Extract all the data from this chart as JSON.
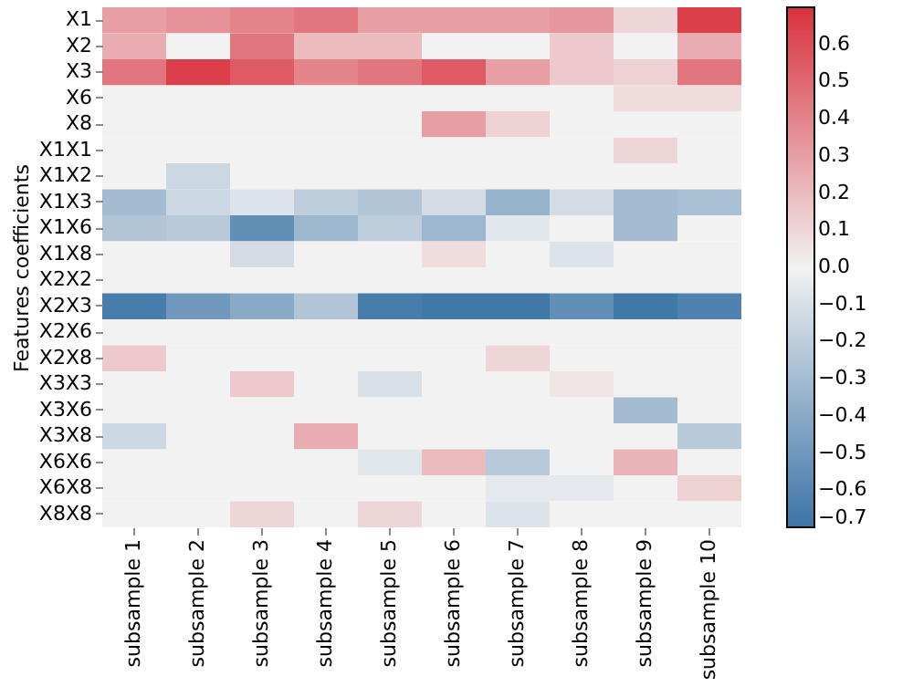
{
  "chart_data": {
    "type": "heatmap",
    "ylabel": "Features coefficients",
    "categories": [
      "subsample 1",
      "subsample 2",
      "subsample 3",
      "subsample 4",
      "subsample 5",
      "subsample 6",
      "subsample 7",
      "subsample 8",
      "subsample 9",
      "subsample 10"
    ],
    "y_categories": [
      "X1",
      "X2",
      "X3",
      "X6",
      "X8",
      "X1X1",
      "X1X2",
      "X1X3",
      "X1X6",
      "X1X8",
      "X2X2",
      "X2X3",
      "X2X6",
      "X2X8",
      "X3X3",
      "X3X6",
      "X3X8",
      "X6X6",
      "X6X8",
      "X8X8"
    ],
    "cells": [
      [
        0.3,
        0.35,
        0.4,
        0.45,
        0.3,
        0.3,
        0.3,
        0.33,
        0.1,
        0.65
      ],
      [
        0.25,
        0,
        0.45,
        0.2,
        0.2,
        0,
        0,
        0.15,
        0,
        0.25
      ],
      [
        0.45,
        0.65,
        0.55,
        0.4,
        0.45,
        0.55,
        0.3,
        0.15,
        0.12,
        0.45
      ],
      [
        0,
        0,
        0,
        0,
        0,
        0,
        0,
        0,
        0.08,
        0.08
      ],
      [
        0,
        0,
        0,
        0,
        0,
        0.3,
        0.12,
        0,
        0,
        0
      ],
      [
        0,
        0,
        0,
        0,
        0,
        0,
        0,
        0,
        0.1,
        0
      ],
      [
        0,
        -0.15,
        0,
        0,
        0,
        0,
        0,
        0,
        0,
        0
      ],
      [
        -0.3,
        -0.15,
        -0.08,
        -0.2,
        -0.25,
        -0.12,
        -0.35,
        -0.12,
        -0.3,
        -0.28
      ],
      [
        -0.25,
        -0.22,
        -0.55,
        -0.33,
        -0.2,
        -0.33,
        -0.06,
        0,
        -0.3,
        0
      ],
      [
        0,
        0,
        -0.12,
        0,
        0,
        0.08,
        0,
        -0.08,
        0,
        0
      ],
      [
        0,
        0,
        0,
        0,
        0,
        0,
        0,
        0,
        0,
        0
      ],
      [
        -0.65,
        -0.5,
        -0.4,
        -0.25,
        -0.65,
        -0.68,
        -0.68,
        -0.55,
        -0.68,
        -0.62
      ],
      [
        0,
        0,
        0,
        0,
        0,
        0,
        0,
        0,
        0,
        0
      ],
      [
        0.15,
        0,
        0,
        0,
        0,
        0,
        0.1,
        0,
        0,
        0
      ],
      [
        0,
        0,
        0.15,
        0,
        -0.1,
        0,
        0,
        0.05,
        0,
        0
      ],
      [
        0,
        0,
        0,
        0,
        0,
        0,
        0,
        0,
        -0.3,
        0
      ],
      [
        -0.15,
        0,
        0,
        0.25,
        0,
        0,
        0,
        0,
        0,
        -0.22
      ],
      [
        0,
        0,
        0,
        0,
        -0.06,
        0.2,
        -0.22,
        0,
        0.22,
        0
      ],
      [
        0,
        0,
        0,
        0,
        0,
        0,
        -0.05,
        -0.05,
        0,
        0.12
      ],
      [
        0,
        0,
        0.1,
        0,
        0.1,
        0,
        -0.08,
        0,
        0,
        0
      ]
    ],
    "clim": [
      -0.7,
      0.7
    ],
    "cticks": [
      {
        "value": 0.6,
        "label": "0.6"
      },
      {
        "value": 0.5,
        "label": "0.5"
      },
      {
        "value": 0.4,
        "label": "0.4"
      },
      {
        "value": 0.3,
        "label": "0.3"
      },
      {
        "value": 0.2,
        "label": "0.2"
      },
      {
        "value": 0.1,
        "label": "0.1"
      },
      {
        "value": 0,
        "label": "0.0"
      },
      {
        "value": -0.1,
        "label": "−0.1"
      },
      {
        "value": -0.2,
        "label": "−0.2"
      },
      {
        "value": -0.3,
        "label": "−0.3"
      },
      {
        "value": -0.4,
        "label": "−0.4"
      },
      {
        "value": -0.5,
        "label": "−0.5"
      },
      {
        "value": -0.6,
        "label": "−0.6"
      },
      {
        "value": -0.7,
        "label": "−0.7"
      }
    ]
  }
}
